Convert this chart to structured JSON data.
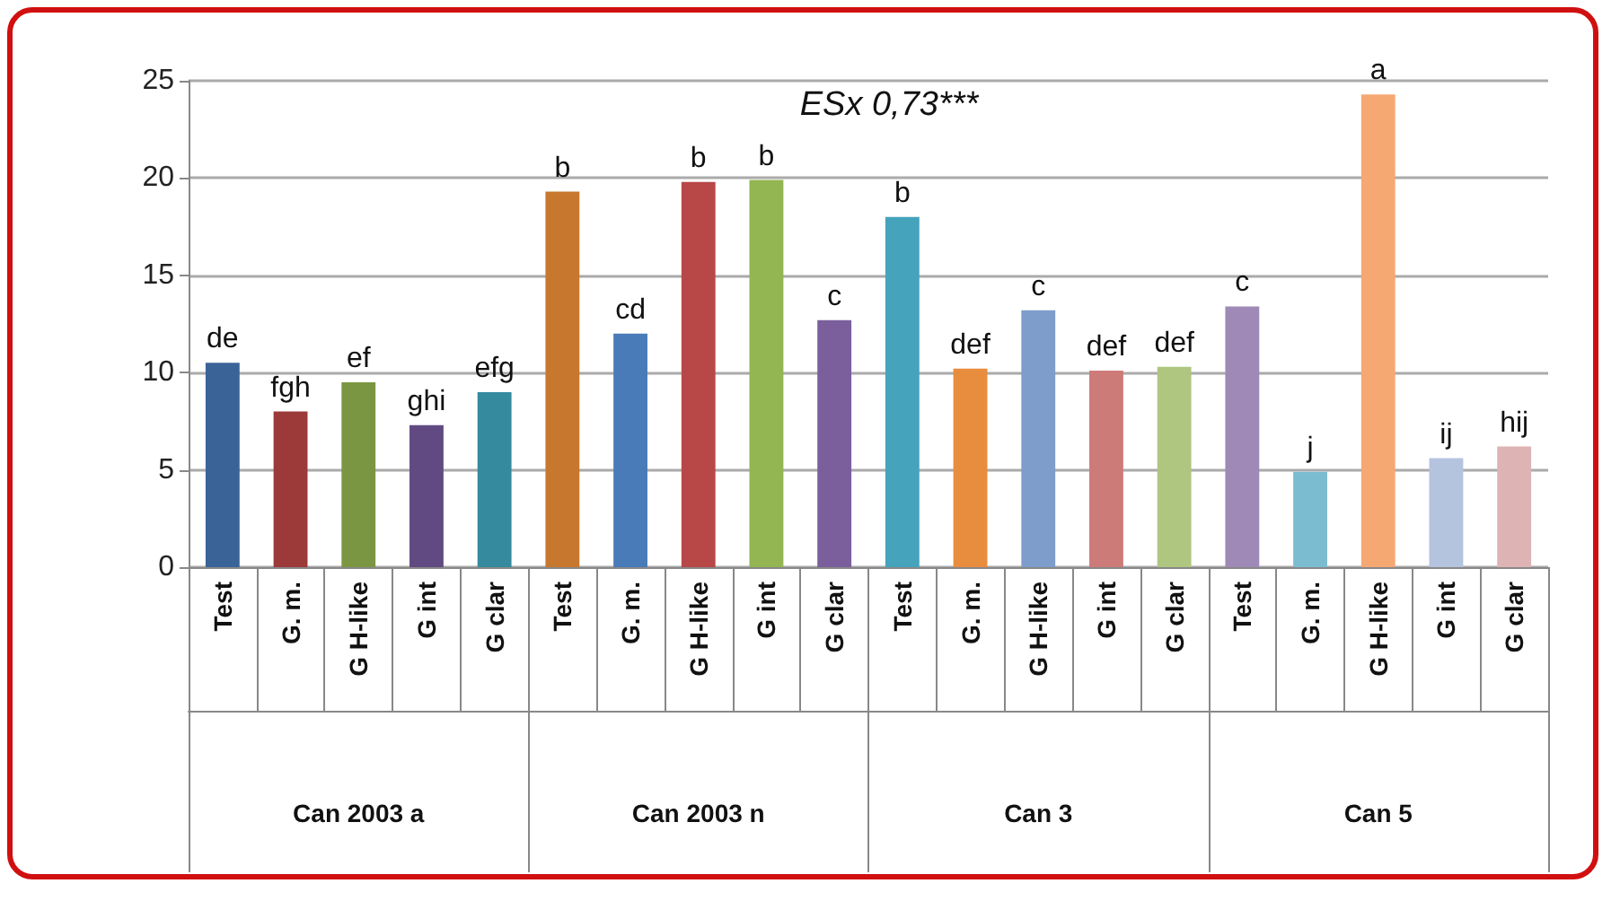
{
  "chart_data": {
    "type": "bar",
    "title": "ESx 0,73***",
    "categories": [
      "Test",
      "G. m.",
      "G H-like",
      "G int",
      "G clar",
      "Test",
      "G. m.",
      "G H-like",
      "G int",
      "G clar",
      "Test",
      "G. m.",
      "G H-like",
      "G int",
      "G clar",
      "Test",
      "G. m.",
      "G H-like",
      "G int",
      "G clar"
    ],
    "values": [
      10.5,
      8,
      9.5,
      7.3,
      9,
      19.3,
      12,
      19.8,
      19.9,
      12.7,
      18,
      10.2,
      13.2,
      10.1,
      10.3,
      13.4,
      4.9,
      24.3,
      5.6,
      6.2
    ],
    "colors": [
      "#3a6397",
      "#9b3a38",
      "#7b9642",
      "#614a82",
      "#358a9e",
      "#c8772f",
      "#4a7bb9",
      "#b84747",
      "#93b552",
      "#7a5f9c",
      "#45a3bc",
      "#e88c3e",
      "#7e9dcb",
      "#cd7b79",
      "#afc680",
      "#9f8ab7",
      "#7bbcd1",
      "#f6a873",
      "#b4c3de",
      "#deb3b3"
    ],
    "value_labels": [
      "de",
      "fgh",
      "ef",
      "ghi",
      "efg",
      "b",
      "cd",
      "b",
      "b",
      "c",
      "b",
      "def",
      "c",
      "def",
      "def",
      "c",
      "j",
      "a",
      "ij",
      "hij"
    ],
    "annotations": [
      "Can 2003 a",
      "Can 2003 n",
      "Can 3",
      "Can 5"
    ],
    "ylim": [
      0,
      25
    ],
    "yticks": [
      0,
      5,
      10,
      15,
      20,
      25
    ],
    "grid": "y"
  }
}
